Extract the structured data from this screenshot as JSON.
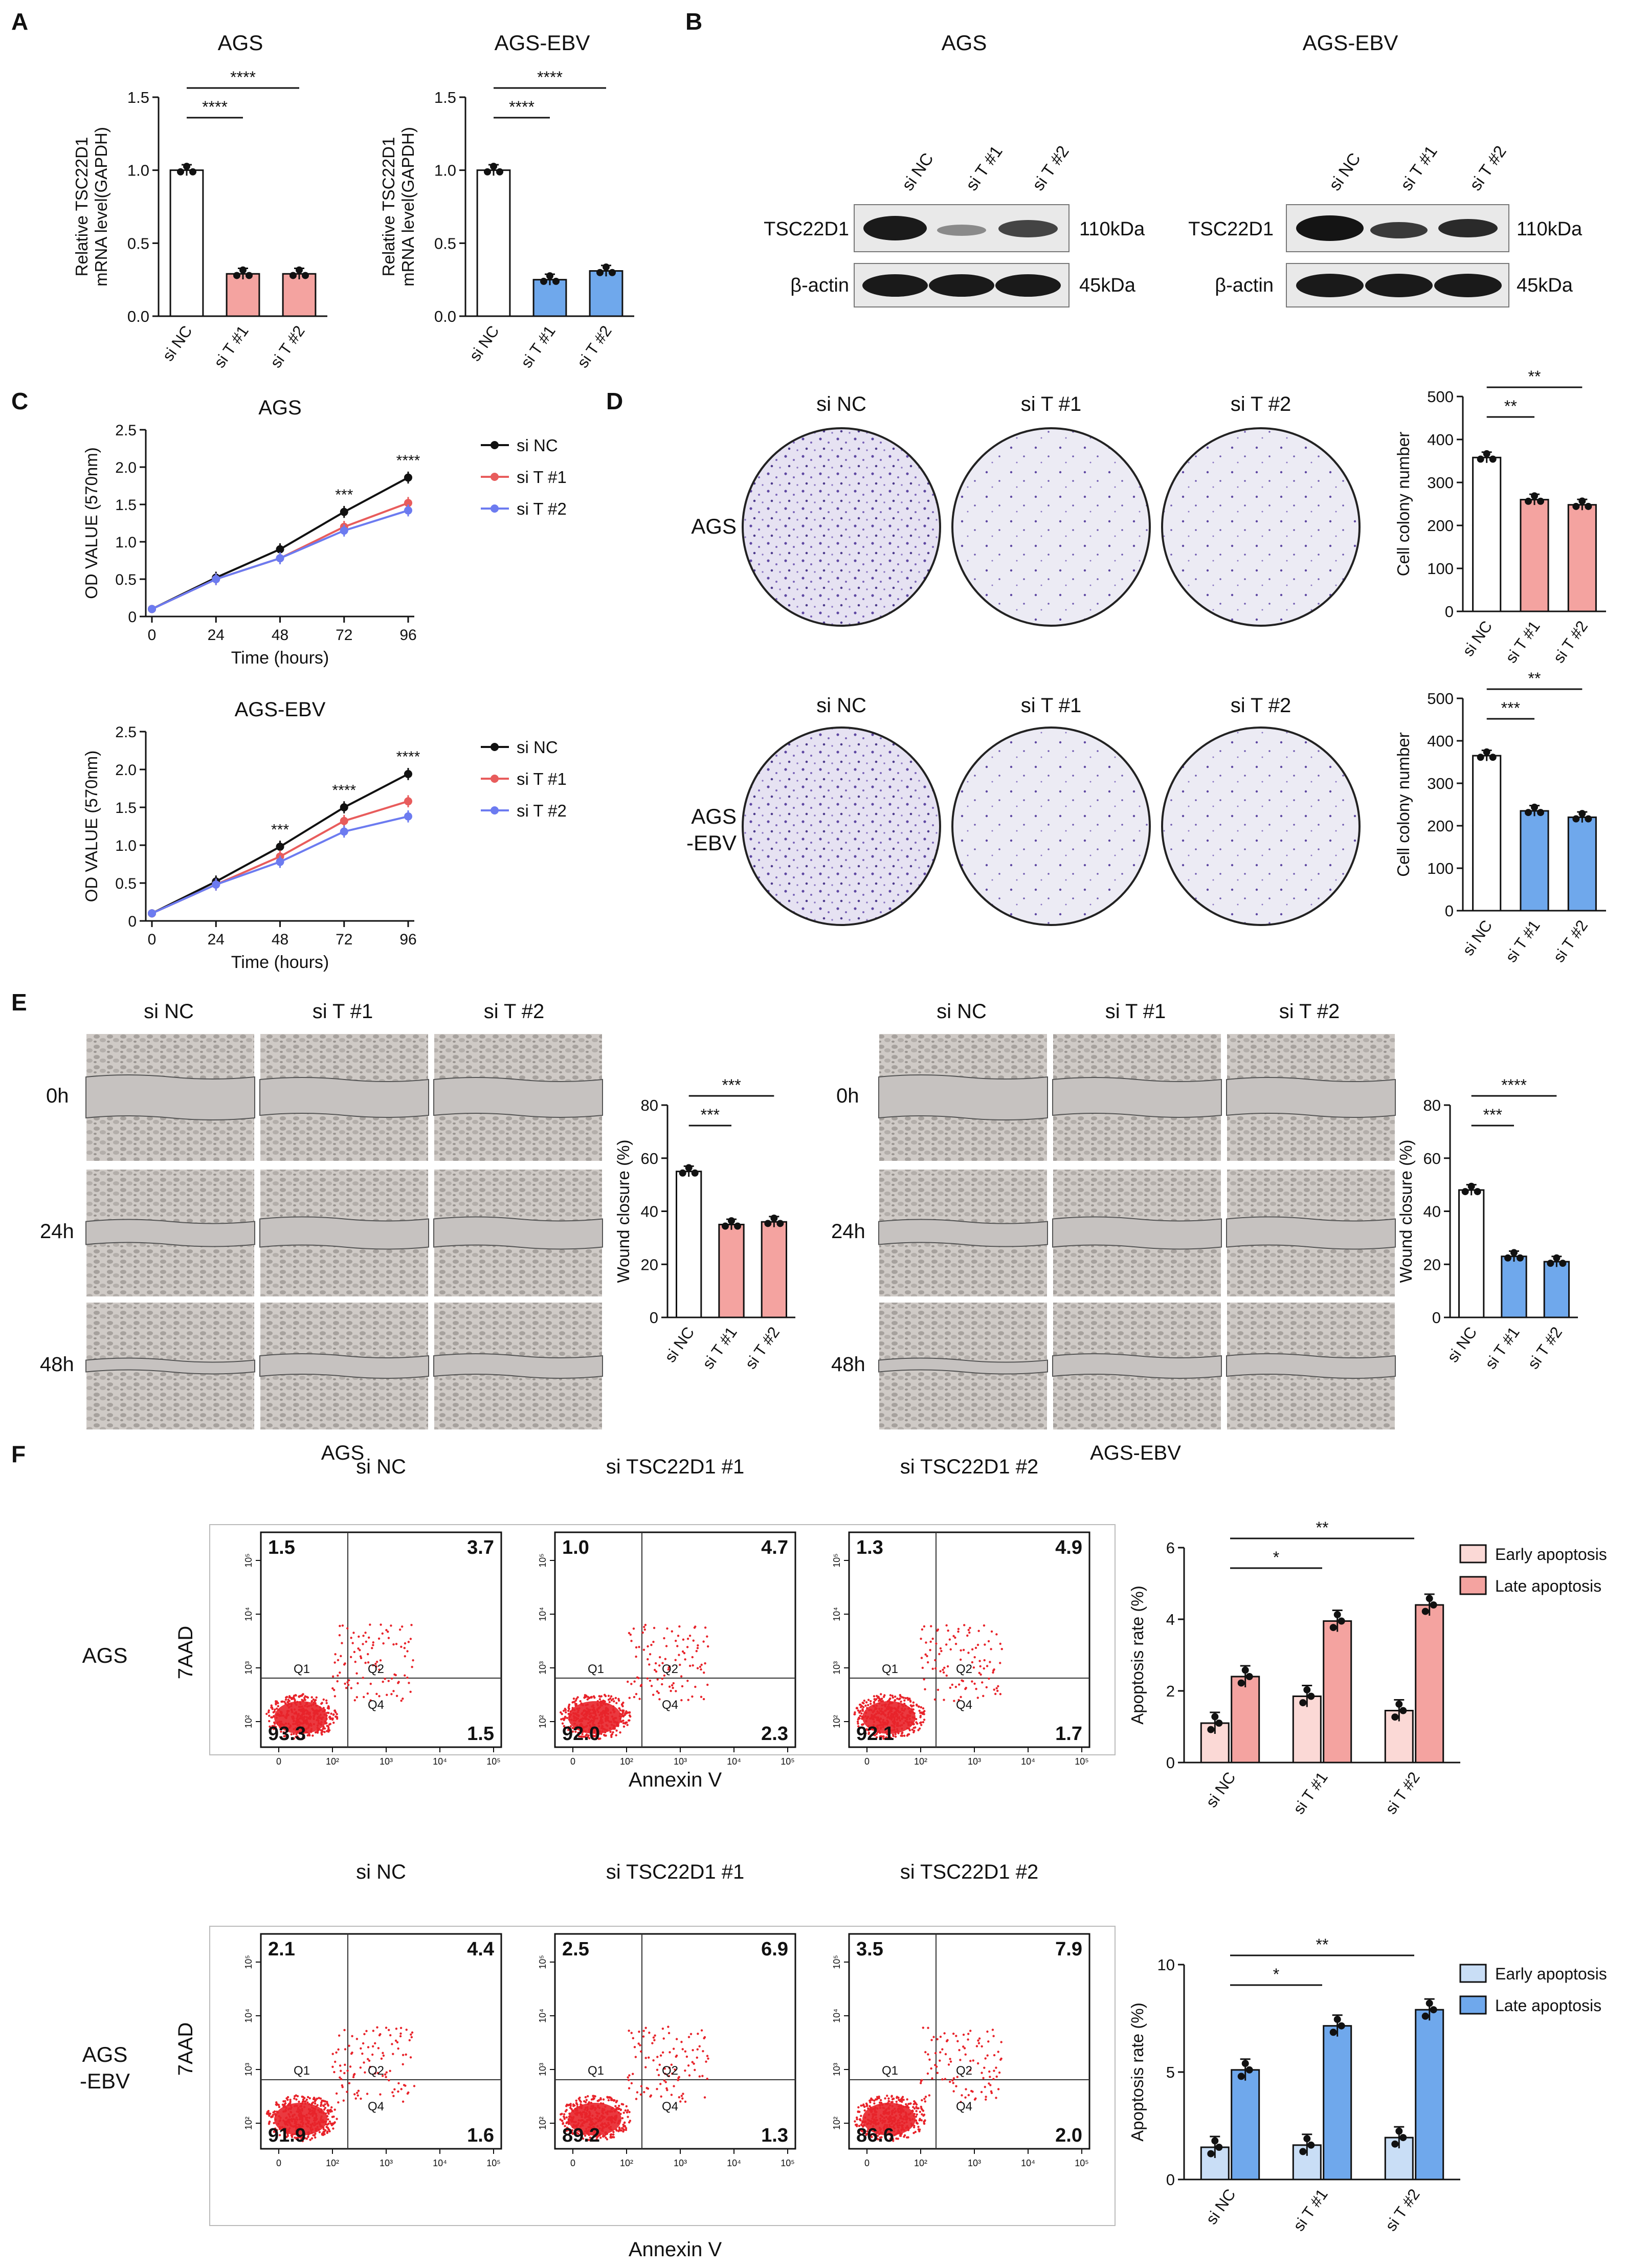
{
  "panels": {
    "A": "A",
    "B": "B",
    "C": "C",
    "D": "D",
    "E": "E",
    "F": "F"
  },
  "colors": {
    "pink": "#f4a3a0",
    "pink_light": "#fbd9d6",
    "blue": "#6fa8ec",
    "blue_light": "#c9def6",
    "black": "#111111",
    "red_line": "#e85c5c",
    "blue_line": "#6c7bf0",
    "stain": "#6a4fb0",
    "dots": "#e8232a"
  },
  "cat3": [
    "si NC",
    "si T #1",
    "si T #2"
  ],
  "labels": {
    "AGS": "AGS",
    "AGS_EBV": "AGS-EBV",
    "AGS_EBV_split": [
      "AGS",
      "-EBV"
    ],
    "siNC": "si NC",
    "siT1": "si T #1",
    "siT2": "si T #2",
    "siTSC1": "si TSC22D1 #1",
    "siTSC2": "si TSC22D1 #2",
    "TSC22D1": "TSC22D1",
    "bactin": "β-actin",
    "kda110": "110kDa",
    "kda45": "45kDa",
    "annexin": "Annexin V",
    "aad": "7AAD",
    "q1": "Q1",
    "q2": "Q2",
    "q4": "Q4",
    "t0": "0h",
    "t24": "24h",
    "t48": "48h"
  },
  "chart_data": [
    {
      "panel": "A",
      "type": "bar",
      "title": "AGS",
      "ylabel": [
        "Relative TSC22D1",
        "mRNA level(GAPDH)"
      ],
      "categories": [
        "si NC",
        "si T #1",
        "si T #2"
      ],
      "values": [
        1.0,
        0.29,
        0.29
      ],
      "ylim": [
        0,
        1.5
      ],
      "yticks": [
        "0.0",
        "0.5",
        "1.0",
        "1.5"
      ],
      "significance": [
        {
          "pair": [
            0,
            1
          ],
          "label": "****"
        },
        {
          "pair": [
            0,
            2
          ],
          "label": "****"
        }
      ]
    },
    {
      "panel": "A",
      "type": "bar",
      "title": "AGS-EBV",
      "ylabel": [
        "Relative TSC22D1",
        "mRNA level(GAPDH)"
      ],
      "categories": [
        "si NC",
        "si T #1",
        "si T #2"
      ],
      "values": [
        1.0,
        0.25,
        0.31
      ],
      "ylim": [
        0,
        1.5
      ],
      "yticks": [
        "0.0",
        "0.5",
        "1.0",
        "1.5"
      ],
      "significance": [
        {
          "pair": [
            0,
            1
          ],
          "label": "****"
        },
        {
          "pair": [
            0,
            2
          ],
          "label": "****"
        }
      ]
    },
    {
      "panel": "C",
      "type": "line",
      "title": "AGS",
      "xlabel": "Time (hours)",
      "ylabel": "OD VALUE (570nm)",
      "x": [
        0,
        24,
        48,
        72,
        96
      ],
      "ylim": [
        0,
        2.5
      ],
      "yticks": [
        "0",
        "0.5",
        "1.0",
        "1.5",
        "2.0",
        "2.5"
      ],
      "series": [
        {
          "name": "si NC",
          "values": [
            0.1,
            0.52,
            0.9,
            1.4,
            1.86
          ]
        },
        {
          "name": "si T #1",
          "values": [
            0.1,
            0.5,
            0.78,
            1.2,
            1.52
          ]
        },
        {
          "name": "si T #2",
          "values": [
            0.1,
            0.5,
            0.78,
            1.15,
            1.42
          ]
        }
      ],
      "annotations": [
        {
          "x": 72,
          "label": "***"
        },
        {
          "x": 96,
          "label": "****"
        }
      ]
    },
    {
      "panel": "C",
      "type": "line",
      "title": "AGS-EBV",
      "xlabel": "Time (hours)",
      "ylabel": "OD VALUE (570nm)",
      "x": [
        0,
        24,
        48,
        72,
        96
      ],
      "ylim": [
        0,
        2.5
      ],
      "yticks": [
        "0",
        "0.5",
        "1.0",
        "1.5",
        "2.0",
        "2.5"
      ],
      "series": [
        {
          "name": "si NC",
          "values": [
            0.1,
            0.52,
            0.98,
            1.5,
            1.94
          ]
        },
        {
          "name": "si T #1",
          "values": [
            0.1,
            0.48,
            0.85,
            1.32,
            1.58
          ]
        },
        {
          "name": "si T #2",
          "values": [
            0.1,
            0.48,
            0.78,
            1.18,
            1.38
          ]
        }
      ],
      "annotations": [
        {
          "x": 48,
          "label": "***"
        },
        {
          "x": 72,
          "label": "****"
        },
        {
          "x": 96,
          "label": "****"
        }
      ]
    },
    {
      "panel": "D",
      "type": "bar",
      "ylabel": "Cell colony number",
      "categories": [
        "si NC",
        "si T #1",
        "si T #2"
      ],
      "values": [
        358,
        260,
        248
      ],
      "ylim": [
        0,
        500
      ],
      "yticks": [
        "0",
        "100",
        "200",
        "300",
        "400",
        "500"
      ],
      "significance": [
        {
          "pair": [
            0,
            1
          ],
          "label": "**"
        },
        {
          "pair": [
            0,
            2
          ],
          "label": "**"
        }
      ]
    },
    {
      "panel": "D",
      "type": "bar",
      "ylabel": "Cell colony number",
      "categories": [
        "si NC",
        "si T #1",
        "si T #2"
      ],
      "values": [
        365,
        235,
        220
      ],
      "ylim": [
        0,
        500
      ],
      "yticks": [
        "0",
        "100",
        "200",
        "300",
        "400",
        "500"
      ],
      "significance": [
        {
          "pair": [
            0,
            1
          ],
          "label": "***"
        },
        {
          "pair": [
            0,
            2
          ],
          "label": "**"
        }
      ]
    },
    {
      "panel": "E",
      "type": "bar",
      "ylabel": "Wound closure (%)",
      "categories": [
        "si NC",
        "si T #1",
        "si T #2"
      ],
      "values": [
        55,
        35,
        36
      ],
      "ylim": [
        0,
        80
      ],
      "yticks": [
        "0",
        "20",
        "40",
        "60",
        "80"
      ],
      "significance": [
        {
          "pair": [
            0,
            1
          ],
          "label": "***"
        },
        {
          "pair": [
            0,
            2
          ],
          "label": "***"
        }
      ]
    },
    {
      "panel": "E",
      "type": "bar",
      "ylabel": "Wound closure (%)",
      "categories": [
        "si NC",
        "si T #1",
        "si T #2"
      ],
      "values": [
        48,
        23,
        21
      ],
      "ylim": [
        0,
        80
      ],
      "yticks": [
        "0",
        "20",
        "40",
        "60",
        "80"
      ],
      "significance": [
        {
          "pair": [
            0,
            1
          ],
          "label": "***"
        },
        {
          "pair": [
            0,
            2
          ],
          "label": "****"
        }
      ]
    },
    {
      "panel": "F",
      "type": "bar",
      "ylabel": "Apoptosis rate (%)",
      "categories": [
        "si NC",
        "si T #1",
        "si T #2"
      ],
      "series": [
        {
          "name": "Early apoptosis",
          "values": [
            1.1,
            1.85,
            1.45
          ]
        },
        {
          "name": "Late apoptosis",
          "values": [
            2.4,
            3.95,
            4.4
          ]
        }
      ],
      "ylim": [
        0,
        6
      ],
      "yticks": [
        "0",
        "2",
        "4",
        "6"
      ],
      "significance": [
        {
          "pair": [
            0,
            1
          ],
          "label": "*"
        },
        {
          "pair": [
            0,
            2
          ],
          "label": "**"
        }
      ]
    },
    {
      "panel": "F",
      "type": "bar",
      "ylabel": "Apoptosis rate (%)",
      "categories": [
        "si NC",
        "si T #1",
        "si T #2"
      ],
      "series": [
        {
          "name": "Early apoptosis",
          "values": [
            1.5,
            1.6,
            1.95
          ]
        },
        {
          "name": "Late apoptosis",
          "values": [
            5.1,
            7.15,
            7.9
          ]
        }
      ],
      "ylim": [
        0,
        10
      ],
      "yticks": [
        "0",
        "5",
        "10"
      ],
      "significance": [
        {
          "pair": [
            0,
            1
          ],
          "label": "*"
        },
        {
          "pair": [
            0,
            2
          ],
          "label": "**"
        }
      ]
    }
  ],
  "flow": [
    {
      "title": "si NC",
      "q": [
        "1.5",
        "3.7",
        "93.3",
        "1.5"
      ]
    },
    {
      "title": "si TSC22D1 #1",
      "q": [
        "1.0",
        "4.7",
        "92.0",
        "2.3"
      ]
    },
    {
      "title": "si TSC22D1 #2",
      "q": [
        "1.3",
        "4.9",
        "92.1",
        "1.7"
      ]
    },
    {
      "title": "si NC",
      "q": [
        "2.1",
        "4.4",
        "91.9",
        "1.6"
      ]
    },
    {
      "title": "si TSC22D1 #1",
      "q": [
        "2.5",
        "6.9",
        "89.2",
        "1.3"
      ]
    },
    {
      "title": "si TSC22D1 #2",
      "q": [
        "3.5",
        "7.9",
        "86.6",
        "2.0"
      ]
    }
  ],
  "flow_axis": {
    "decades": [
      "0",
      "10²",
      "10³",
      "10⁴",
      "10⁵"
    ],
    "yticks": [
      "10²",
      "10³",
      "10⁴",
      "10⁵"
    ]
  }
}
